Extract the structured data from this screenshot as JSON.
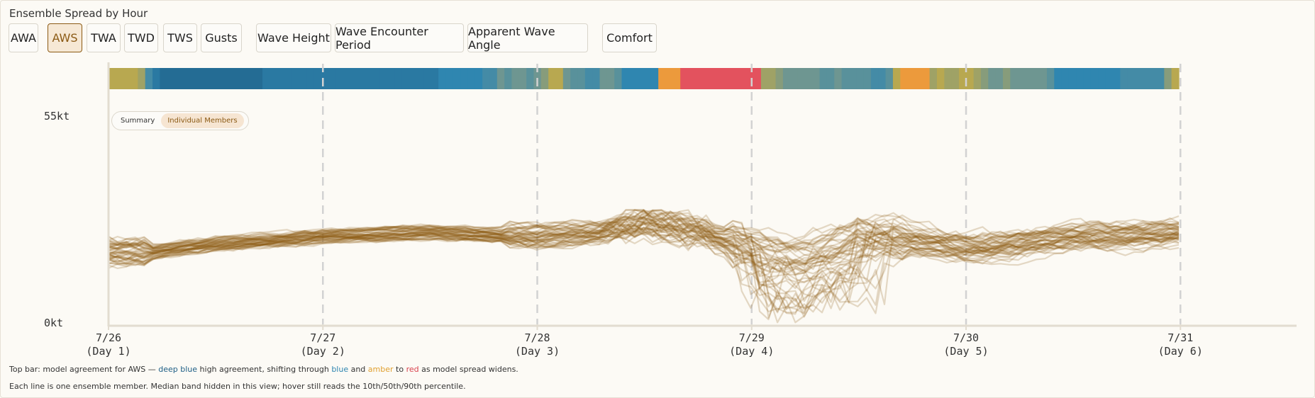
{
  "header": {
    "title": "Ensemble Spread by Hour"
  },
  "metric_buttons": {
    "awa": "AWA",
    "aws": "AWS",
    "twa": "TWA",
    "twd": "TWD",
    "tws": "TWS",
    "gusts": "Gusts",
    "wave_height": "Wave Height",
    "wave_encounter_period": "Wave Encounter Period",
    "apparent_wave_angle": "Apparent Wave Angle",
    "comfort": "Comfort"
  },
  "selected_metric": "AWS",
  "view_toggle": {
    "summary": "Summary",
    "individual": "Individual Members",
    "selected": "Individual Members"
  },
  "notes": {
    "line1_prefix": "Top bar: model agreement for AWS — ",
    "deep_blue": "deep blue",
    "mid1": " high agreement, shifting through ",
    "blue": "blue",
    "and": " and ",
    "amber": "amber",
    "to": " to ",
    "red": "red",
    "suffix": " as model spread widens.",
    "line2": "Each line is one ensemble member. Median band hidden in this view; hover still reads the 10th/50th/90th percentile."
  },
  "colors": {
    "deep_blue": "#1f5f86",
    "blue": "#2f86b0",
    "amber": "#e8a83a",
    "red": "#d9434f",
    "member_line": "#8b5a14",
    "axis": "#e2dcd0",
    "day_line": "#d2d2d2"
  },
  "chart_data": {
    "type": "line",
    "ylabels": [
      "55kt",
      "0kt"
    ],
    "ylim": [
      0,
      55
    ],
    "x_ticks": [
      {
        "date": "7/26",
        "day": "(Day 1)",
        "hour": 0
      },
      {
        "date": "7/27",
        "day": "(Day 2)",
        "hour": 24
      },
      {
        "date": "7/28",
        "day": "(Day 3)",
        "hour": 48
      },
      {
        "date": "7/29",
        "day": "(Day 4)",
        "hour": 72
      },
      {
        "date": "7/30",
        "day": "(Day 5)",
        "hour": 96
      },
      {
        "date": "7/31",
        "day": "(Day 6)",
        "hour": 120
      }
    ],
    "hours": 121,
    "xlim_hours": [
      0,
      133
    ],
    "ensemble_members": 50,
    "median_profile_hours": [
      0,
      5,
      12,
      24,
      36,
      48,
      55,
      60,
      66,
      72,
      78,
      84,
      90,
      96,
      102,
      108,
      114,
      120
    ],
    "median_profile_kt": [
      19,
      19,
      21,
      23,
      24,
      23,
      24,
      26,
      24,
      20,
      18,
      23,
      22,
      20,
      21,
      23,
      23,
      24
    ],
    "agreement_bar": [
      0.45,
      0.45,
      0.45,
      0.45,
      0.4,
      0.2,
      0.1,
      0.05,
      0.05,
      0.05,
      0.05,
      0.05,
      0.05,
      0.05,
      0.05,
      0.05,
      0.05,
      0.05,
      0.05,
      0.05,
      0.05,
      0.1,
      0.1,
      0.1,
      0.1,
      0.1,
      0.1,
      0.1,
      0.1,
      0.1,
      0.1,
      0.1,
      0.1,
      0.1,
      0.1,
      0.1,
      0.1,
      0.1,
      0.1,
      0.1,
      0.1,
      0.1,
      0.1,
      0.1,
      0.1,
      0.15,
      0.15,
      0.15,
      0.15,
      0.15,
      0.15,
      0.2,
      0.2,
      0.3,
      0.25,
      0.3,
      0.3,
      0.25,
      0.3,
      0.35,
      0.45,
      0.45,
      0.3,
      0.25,
      0.25,
      0.2,
      0.2,
      0.3,
      0.3,
      0.25,
      0.15,
      0.15,
      0.15,
      0.15,
      0.15,
      0.5,
      0.5,
      0.5,
      0.6,
      0.6,
      0.6,
      0.6,
      0.6,
      0.6,
      0.6,
      0.6,
      0.6,
      0.65,
      0.6,
      0.4,
      0.4,
      0.35,
      0.3,
      0.3,
      0.3,
      0.3,
      0.3,
      0.25,
      0.25,
      0.3,
      0.25,
      0.25,
      0.25,
      0.25,
      0.2,
      0.2,
      0.25,
      0.45,
      0.55,
      0.5,
      0.55,
      0.5,
      0.4,
      0.45,
      0.4,
      0.4,
      0.45,
      0.45,
      0.4,
      0.35,
      0.3,
      0.3,
      0.35,
      0.3,
      0.3,
      0.3,
      0.3,
      0.3,
      0.25,
      0.15,
      0.15,
      0.15,
      0.15,
      0.15,
      0.15,
      0.15,
      0.15,
      0.15,
      0.2,
      0.2,
      0.2,
      0.2,
      0.2,
      0.2,
      0.35,
      0.45
    ]
  }
}
